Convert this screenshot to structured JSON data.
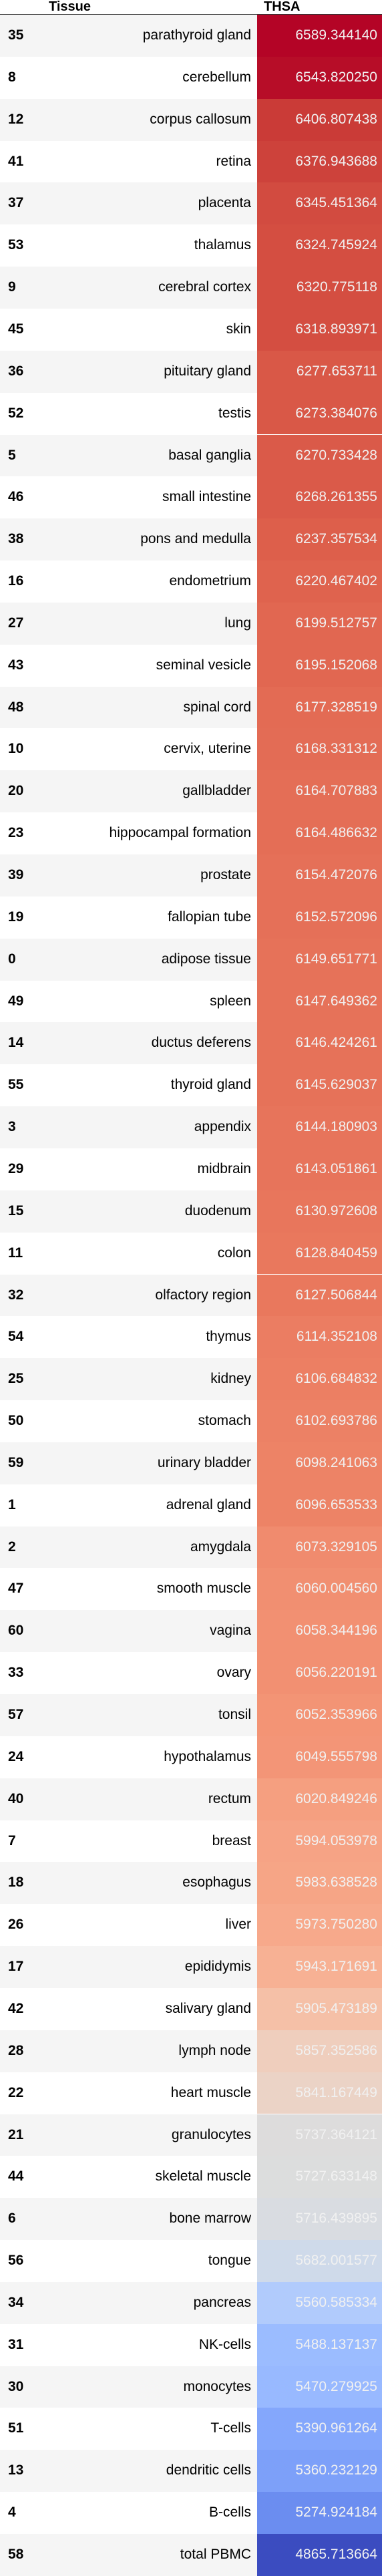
{
  "table": {
    "columns": [
      "Tissue",
      "THSA"
    ],
    "rows": [
      {
        "index": "35",
        "tissue": "parathyroid gland",
        "value": "6589.344140",
        "color": "#b40426"
      },
      {
        "index": "8",
        "tissue": "cerebellum",
        "value": "6543.820250",
        "color": "#b70d28"
      },
      {
        "index": "12",
        "tissue": "corpus callosum",
        "value": "6406.807438",
        "color": "#ca3b37"
      },
      {
        "index": "41",
        "tissue": "retina",
        "value": "6376.943688",
        "color": "#cd423b"
      },
      {
        "index": "37",
        "tissue": "placenta",
        "value": "6345.451364",
        "color": "#d24b40"
      },
      {
        "index": "53",
        "tissue": "thalamus",
        "value": "6324.745924",
        "color": "#d44e41"
      },
      {
        "index": "9",
        "tissue": "cerebral cortex",
        "value": "6320.775118",
        "color": "#d44e41"
      },
      {
        "index": "45",
        "tissue": "skin",
        "value": "6318.893971",
        "color": "#d44e41"
      },
      {
        "index": "36",
        "tissue": "pituitary gland",
        "value": "6277.653711",
        "color": "#d95847"
      },
      {
        "index": "52",
        "tissue": "testis",
        "value": "6273.384076",
        "color": "#d95847"
      },
      {
        "index": "5",
        "tissue": "basal ganglia",
        "value": "6270.733428",
        "color": "#da5a49"
      },
      {
        "index": "46",
        "tissue": "small intestine",
        "value": "6268.261355",
        "color": "#da5a49"
      },
      {
        "index": "38",
        "tissue": "pons and medulla",
        "value": "6237.357534",
        "color": "#dd5f4b"
      },
      {
        "index": "16",
        "tissue": "endometrium",
        "value": "6220.467402",
        "color": "#df634e"
      },
      {
        "index": "27",
        "tissue": "lung",
        "value": "6199.512757",
        "color": "#e16751"
      },
      {
        "index": "43",
        "tissue": "seminal vesicle",
        "value": "6195.152068",
        "color": "#e16751"
      },
      {
        "index": "48",
        "tissue": "spinal cord",
        "value": "6177.328519",
        "color": "#e36b54"
      },
      {
        "index": "10",
        "tissue": "cervix, uterine",
        "value": "6168.331312",
        "color": "#e36c55"
      },
      {
        "index": "20",
        "tissue": "gallbladder",
        "value": "6164.707883",
        "color": "#e46e56"
      },
      {
        "index": "23",
        "tissue": "hippocampal formation",
        "value": "6164.486632",
        "color": "#e46e56"
      },
      {
        "index": "39",
        "tissue": "prostate",
        "value": "6154.472076",
        "color": "#e57058"
      },
      {
        "index": "19",
        "tissue": "fallopian tube",
        "value": "6152.572096",
        "color": "#e57058"
      },
      {
        "index": "0",
        "tissue": "adipose tissue",
        "value": "6149.651771",
        "color": "#e67259"
      },
      {
        "index": "49",
        "tissue": "spleen",
        "value": "6147.649362",
        "color": "#e67259"
      },
      {
        "index": "14",
        "tissue": "ductus deferens",
        "value": "6146.424261",
        "color": "#e67259"
      },
      {
        "index": "55",
        "tissue": "thyroid gland",
        "value": "6145.629037",
        "color": "#e67259"
      },
      {
        "index": "3",
        "tissue": "appendix",
        "value": "6144.180903",
        "color": "#e7745b"
      },
      {
        "index": "29",
        "tissue": "midbrain",
        "value": "6143.051861",
        "color": "#e7745b"
      },
      {
        "index": "15",
        "tissue": "duodenum",
        "value": "6130.972608",
        "color": "#e8765c"
      },
      {
        "index": "11",
        "tissue": "colon",
        "value": "6128.840459",
        "color": "#e9785d"
      },
      {
        "index": "32",
        "tissue": "olfactory region",
        "value": "6127.506844",
        "color": "#e9785d"
      },
      {
        "index": "54",
        "tissue": "thymus",
        "value": "6114.352108",
        "color": "#eb7d62"
      },
      {
        "index": "25",
        "tissue": "kidney",
        "value": "6106.684832",
        "color": "#ec7f63"
      },
      {
        "index": "50",
        "tissue": "stomach",
        "value": "6102.693786",
        "color": "#ec8165"
      },
      {
        "index": "59",
        "tissue": "urinary bladder",
        "value": "6098.241063",
        "color": "#ed8366"
      },
      {
        "index": "1",
        "tissue": "adrenal gland",
        "value": "6096.653533",
        "color": "#ed8366"
      },
      {
        "index": "2",
        "tissue": "amygdala",
        "value": "6073.329105",
        "color": "#f08b6e"
      },
      {
        "index": "47",
        "tissue": "smooth muscle",
        "value": "6060.004560",
        "color": "#f18f71"
      },
      {
        "index": "60",
        "tissue": "vagina",
        "value": "6058.344196",
        "color": "#f29072"
      },
      {
        "index": "33",
        "tissue": "ovary",
        "value": "6056.220191",
        "color": "#f29072"
      },
      {
        "index": "57",
        "tissue": "tonsil",
        "value": "6052.353966",
        "color": "#f39475"
      },
      {
        "index": "24",
        "tissue": "hypothalamus",
        "value": "6049.555798",
        "color": "#f39577"
      },
      {
        "index": "40",
        "tissue": "rectum",
        "value": "6020.849246",
        "color": "#f59f80"
      },
      {
        "index": "7",
        "tissue": "breast",
        "value": "5994.053978",
        "color": "#f6a385"
      },
      {
        "index": "18",
        "tissue": "esophagus",
        "value": "5983.638528",
        "color": "#f6a586"
      },
      {
        "index": "26",
        "tissue": "liver",
        "value": "5973.750280",
        "color": "#f7a98b"
      },
      {
        "index": "17",
        "tissue": "epididymis",
        "value": "5943.171691",
        "color": "#f7b194"
      },
      {
        "index": "42",
        "tissue": "salivary gland",
        "value": "5905.473189",
        "color": "#f5c0a7"
      },
      {
        "index": "28",
        "tissue": "lymph node",
        "value": "5857.352586",
        "color": "#efcebd"
      },
      {
        "index": "22",
        "tissue": "heart muscle",
        "value": "5841.167449",
        "color": "#ebd3c6"
      },
      {
        "index": "21",
        "tissue": "granulocytes",
        "value": "5737.364121",
        "color": "#dddcdc"
      },
      {
        "index": "44",
        "tissue": "skeletal muscle",
        "value": "5727.633148",
        "color": "#dcdddd"
      },
      {
        "index": "6",
        "tissue": "bone marrow",
        "value": "5716.439895",
        "color": "#d9dce1"
      },
      {
        "index": "56",
        "tissue": "tongue",
        "value": "5682.001577",
        "color": "#cfdaea"
      },
      {
        "index": "34",
        "tissue": "pancreas",
        "value": "5560.585334",
        "color": "#b1cbfc"
      },
      {
        "index": "31",
        "tissue": "NK-cells",
        "value": "5488.137137",
        "color": "#9bbcff"
      },
      {
        "index": "30",
        "tissue": "monocytes",
        "value": "5470.279925",
        "color": "#98b9ff"
      },
      {
        "index": "51",
        "tissue": "T-cells",
        "value": "5390.961264",
        "color": "#84a7fc"
      },
      {
        "index": "13",
        "tissue": "dendritic cells",
        "value": "5360.232129",
        "color": "#7da0f9"
      },
      {
        "index": "4",
        "tissue": "B-cells",
        "value": "5274.924184",
        "color": "#6b8df0"
      },
      {
        "index": "58",
        "tissue": "total PBMC",
        "value": "4865.713664",
        "color": "#3b4cc0",
        "text_color": "#f1f1f1"
      }
    ]
  }
}
